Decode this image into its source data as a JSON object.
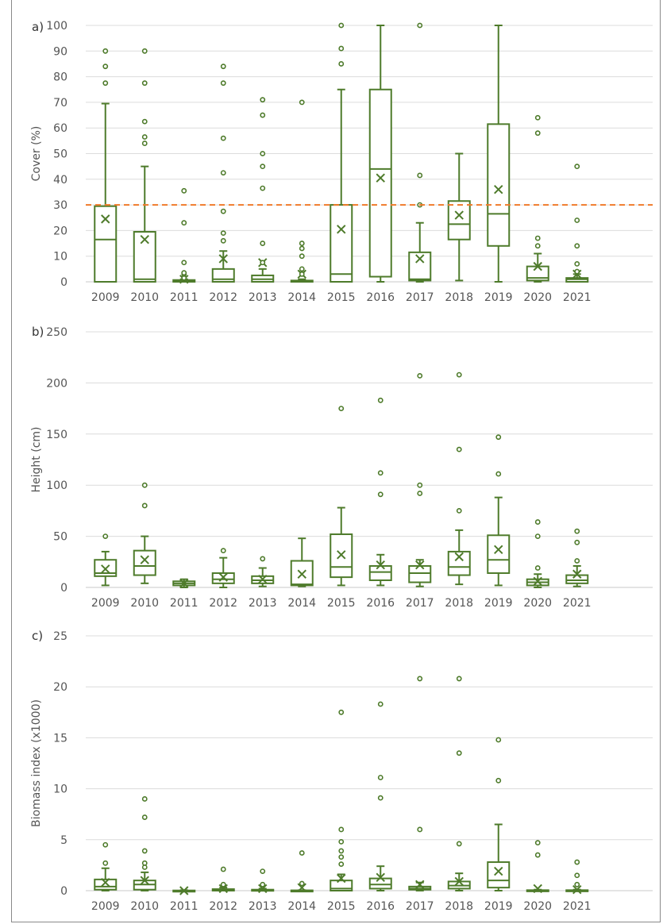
{
  "colors": {
    "series": "#4e7b2b",
    "threshold": "#f07a2a",
    "grid": "#dcdcdc"
  },
  "chart_data": [
    {
      "type": "box",
      "panel_label": "a)",
      "ylabel": "Cover (%)",
      "ylim": [
        0,
        100
      ],
      "yticks": [
        "0",
        "10",
        "20",
        "30",
        "40",
        "50",
        "60",
        "70",
        "80",
        "90",
        "100"
      ],
      "grid": true,
      "reference_line": {
        "y": 30,
        "style": "dashed"
      },
      "categories": [
        "2009",
        "2010",
        "2011",
        "2012",
        "2013",
        "2014",
        "2015",
        "2016",
        "2017",
        "2018",
        "2019",
        "2020",
        "2021"
      ],
      "boxes": [
        {
          "min": 0,
          "q1": 0,
          "median": 16.5,
          "q3": 29.5,
          "max": 69.5,
          "mean": 24.5,
          "outliers": [
            77.5,
            84,
            90
          ]
        },
        {
          "min": 0,
          "q1": 0,
          "median": 1,
          "q3": 19.5,
          "max": 45,
          "mean": 16.5,
          "outliers": [
            54,
            56.5,
            62.5,
            77.5,
            90
          ]
        },
        {
          "min": 0,
          "q1": 0,
          "median": 0.5,
          "q3": 0.7,
          "max": 1,
          "mean": 1,
          "outliers": [
            1.5,
            3,
            3.5,
            7.5,
            23,
            35.5
          ]
        },
        {
          "min": 0,
          "q1": 0,
          "median": 1,
          "q3": 5,
          "max": 12,
          "mean": 9,
          "outliers": [
            16,
            19,
            27.5,
            42.5,
            56,
            77.5,
            84
          ]
        },
        {
          "min": 0,
          "q1": 0,
          "median": 1,
          "q3": 2.5,
          "max": 5,
          "mean": 7.5,
          "outliers": [
            7.5,
            15,
            36.5,
            45,
            50,
            65,
            71
          ]
        },
        {
          "min": 0,
          "q1": 0,
          "median": 0,
          "q3": 0.5,
          "max": 1,
          "mean": 3,
          "outliers": [
            3,
            5,
            10,
            13,
            15,
            70
          ]
        },
        {
          "min": 0,
          "q1": 0,
          "median": 3,
          "q3": 30,
          "max": 75,
          "mean": 20.5,
          "outliers": [
            85,
            91,
            100
          ]
        },
        {
          "min": 0,
          "q1": 2,
          "median": 44,
          "q3": 75,
          "max": 100,
          "mean": 40.5,
          "outliers": []
        },
        {
          "min": 0,
          "q1": 0.5,
          "median": 1,
          "q3": 11.5,
          "max": 23,
          "mean": 9,
          "outliers": [
            30,
            41.5,
            100
          ]
        },
        {
          "min": 0.5,
          "q1": 16.5,
          "median": 22.5,
          "q3": 31.5,
          "max": 50,
          "mean": 26,
          "outliers": []
        },
        {
          "min": 0,
          "q1": 14,
          "median": 26.5,
          "q3": 61.5,
          "max": 100,
          "mean": 36,
          "outliers": []
        },
        {
          "min": 0,
          "q1": 0.5,
          "median": 1.5,
          "q3": 6,
          "max": 11,
          "mean": 6,
          "outliers": [
            14,
            17,
            58,
            64
          ]
        },
        {
          "min": 0,
          "q1": 0,
          "median": 1,
          "q3": 1.5,
          "max": 3,
          "mean": 3,
          "outliers": [
            4,
            7,
            14,
            24,
            45
          ]
        }
      ]
    },
    {
      "type": "box",
      "panel_label": "b)",
      "ylabel": "Height (cm)",
      "ylim": [
        0,
        250
      ],
      "yticks": [
        "0",
        "50",
        "100",
        "150",
        "200",
        "250"
      ],
      "grid": true,
      "categories": [
        "2009",
        "2010",
        "2011",
        "2012",
        "2013",
        "2014",
        "2015",
        "2016",
        "2017",
        "2018",
        "2019",
        "2020",
        "2021"
      ],
      "boxes": [
        {
          "min": 2,
          "q1": 11,
          "median": 14,
          "q3": 27,
          "max": 35,
          "mean": 18,
          "outliers": [
            50
          ]
        },
        {
          "min": 4,
          "q1": 12,
          "median": 21,
          "q3": 36,
          "max": 50,
          "mean": 27,
          "outliers": [
            80,
            100
          ]
        },
        {
          "min": 0,
          "q1": 2,
          "median": 4,
          "q3": 6,
          "max": 8,
          "mean": 4,
          "outliers": []
        },
        {
          "min": 0,
          "q1": 4,
          "median": 8,
          "q3": 14,
          "max": 29,
          "mean": 10,
          "outliers": [
            36
          ]
        },
        {
          "min": 1,
          "q1": 4,
          "median": 7,
          "q3": 11,
          "max": 19,
          "mean": 8,
          "outliers": [
            28
          ]
        },
        {
          "min": 1,
          "q1": 2,
          "median": 3,
          "q3": 26,
          "max": 48,
          "mean": 13,
          "outliers": []
        },
        {
          "min": 2,
          "q1": 10,
          "median": 20,
          "q3": 52,
          "max": 78,
          "mean": 32,
          "outliers": [
            175
          ]
        },
        {
          "min": 2,
          "q1": 7,
          "median": 15,
          "q3": 21,
          "max": 32,
          "mean": 22,
          "outliers": [
            91,
            112,
            183
          ]
        },
        {
          "min": 1,
          "q1": 5,
          "median": 14,
          "q3": 21,
          "max": 27,
          "mean": 22,
          "outliers": [
            92,
            100,
            207
          ]
        },
        {
          "min": 3,
          "q1": 12,
          "median": 20,
          "q3": 35,
          "max": 56,
          "mean": 30,
          "outliers": [
            75,
            135,
            208
          ]
        },
        {
          "min": 2,
          "q1": 14,
          "median": 27,
          "q3": 51,
          "max": 88,
          "mean": 37,
          "outliers": [
            111,
            147
          ]
        },
        {
          "min": 0,
          "q1": 2,
          "median": 5,
          "q3": 8,
          "max": 13,
          "mean": 6,
          "outliers": [
            19,
            50,
            64
          ]
        },
        {
          "min": 1,
          "q1": 4,
          "median": 7,
          "q3": 12,
          "max": 21,
          "mean": 13,
          "outliers": [
            26,
            44,
            55
          ]
        }
      ]
    },
    {
      "type": "box",
      "panel_label": "c)",
      "ylabel": "Biomass index (x1000)",
      "ylim": [
        0,
        25
      ],
      "yticks": [
        "0",
        "5",
        "10",
        "15",
        "20",
        "25"
      ],
      "grid": true,
      "categories": [
        "2009",
        "2010",
        "2011",
        "2012",
        "2013",
        "2014",
        "2015",
        "2016",
        "2017",
        "2018",
        "2019",
        "2020",
        "2021"
      ],
      "boxes": [
        {
          "min": 0,
          "q1": 0.1,
          "median": 0.4,
          "q3": 1.1,
          "max": 2.2,
          "mean": 0.8,
          "outliers": [
            2.7,
            4.5
          ]
        },
        {
          "min": 0,
          "q1": 0.1,
          "median": 0.6,
          "q3": 1,
          "max": 1.8,
          "mean": 1,
          "outliers": [
            2.3,
            2.7,
            3.9,
            7.2,
            9
          ]
        },
        {
          "min": 0,
          "q1": 0,
          "median": 0,
          "q3": 0.02,
          "max": 0.05,
          "mean": 0,
          "outliers": []
        },
        {
          "min": 0,
          "q1": 0,
          "median": 0.05,
          "q3": 0.15,
          "max": 0.3,
          "mean": 0.2,
          "outliers": [
            0.6,
            2.1
          ]
        },
        {
          "min": 0,
          "q1": 0,
          "median": 0.05,
          "q3": 0.1,
          "max": 0.2,
          "mean": 0.2,
          "outliers": [
            0.6,
            1.9
          ]
        },
        {
          "min": 0,
          "q1": 0,
          "median": 0.01,
          "q3": 0.03,
          "max": 0.05,
          "mean": 0.3,
          "outliers": [
            0.7,
            3.7
          ]
        },
        {
          "min": 0,
          "q1": 0,
          "median": 0.2,
          "q3": 1,
          "max": 1.6,
          "mean": 1.2,
          "outliers": [
            2.6,
            3.3,
            3.9,
            4.8,
            6,
            17.5
          ]
        },
        {
          "min": 0,
          "q1": 0.2,
          "median": 0.6,
          "q3": 1.2,
          "max": 2.4,
          "mean": 1.3,
          "outliers": [
            9.1,
            11.1,
            18.3
          ]
        },
        {
          "min": 0,
          "q1": 0.1,
          "median": 0.2,
          "q3": 0.4,
          "max": 0.8,
          "mean": 0.6,
          "outliers": [
            6,
            20.8
          ]
        },
        {
          "min": 0,
          "q1": 0.2,
          "median": 0.5,
          "q3": 0.9,
          "max": 1.7,
          "mean": 0.9,
          "outliers": [
            4.6,
            13.5,
            20.8
          ]
        },
        {
          "min": 0,
          "q1": 0.3,
          "median": 1,
          "q3": 2.8,
          "max": 6.5,
          "mean": 1.9,
          "outliers": [
            10.8,
            14.8
          ]
        },
        {
          "min": 0,
          "q1": 0,
          "median": 0.02,
          "q3": 0.05,
          "max": 0.1,
          "mean": 0.2,
          "outliers": [
            3.5,
            4.7
          ]
        },
        {
          "min": 0,
          "q1": 0,
          "median": 0.02,
          "q3": 0.05,
          "max": 0.1,
          "mean": 0.1,
          "outliers": [
            0.6,
            1.5,
            2.8
          ]
        }
      ]
    }
  ]
}
